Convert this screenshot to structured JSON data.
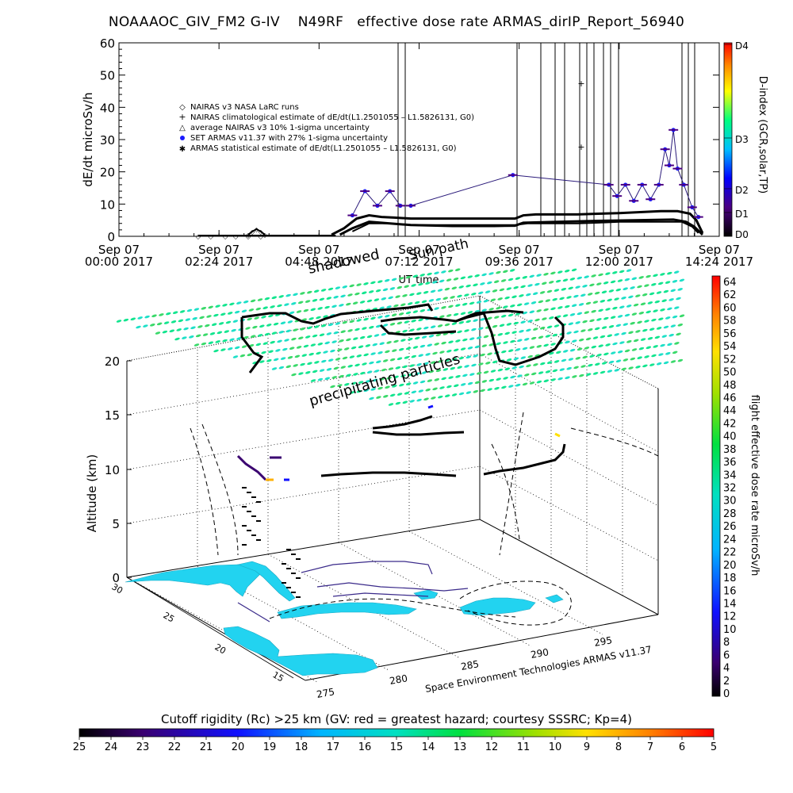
{
  "title": "NOAAAOC_GIV_FM2 G-IV    N49RF   effective dose rate ARMAS_dirIP_Report_56940",
  "chart_data": [
    {
      "type": "line",
      "ylabel": "dE/dt microSv/h",
      "xlabel": "UT time",
      "ylim": [
        0,
        60
      ],
      "yticks": [
        "0",
        "10",
        "20",
        "30",
        "40",
        "50",
        "60"
      ],
      "xticks": [
        {
          "day": "Sep 07",
          "time": "00:00 2017"
        },
        {
          "day": "Sep 07",
          "time": "02:24 2017"
        },
        {
          "day": "Sep 07",
          "time": "04:48 2017"
        },
        {
          "day": "Sep 07",
          "time": "07:12 2017"
        },
        {
          "day": "Sep 07",
          "time": "09:36 2017"
        },
        {
          "day": "Sep 07",
          "time": "12:00 2017"
        },
        {
          "day": "Sep 07",
          "time": "14:24 2017"
        }
      ],
      "x_hours_range": [
        0,
        14.4
      ],
      "legend": [
        "NAIRAS v3 NASA LaRC runs",
        "NAIRAS climatological estimate of dE/dt(L1.2501055 – L1.5826131, G0)",
        "average NAIRAS v3 10% 1-sigma uncertainty",
        "SET ARMAS v11.37 with 27% 1-sigma uncertainty",
        "ARMAS statistical estimate of dE/dt(L1.2501055 – L1.5826131, G0)"
      ],
      "legend_colors": [
        "#000000",
        "#000000",
        "#000000",
        "#1a1aff",
        "#000000"
      ],
      "colorbar": {
        "label": "D-index (GCR,solar,TP)",
        "ticks": [
          "D4",
          "D3",
          "D2",
          "D1",
          "D0"
        ]
      },
      "series": [
        {
          "key": "nairas_runs",
          "x_hours": [
            1.9,
            2.2,
            2.55,
            2.8,
            3.1,
            3.4
          ],
          "values": [
            0,
            0,
            0,
            0,
            0,
            0
          ]
        },
        {
          "key": "nairas_bump",
          "x_hours": [
            3.1,
            3.2,
            3.3,
            3.4,
            3.5
          ],
          "values": [
            0.5,
            1.5,
            2.2,
            1.5,
            0.5
          ]
        },
        {
          "key": "climatological",
          "x_hours": [
            5.1,
            5.4,
            5.7,
            6.0,
            6.3,
            6.6,
            7.0,
            7.5,
            8.0,
            8.5,
            9.0,
            9.5,
            9.7,
            10.0,
            10.5,
            11.0,
            11.5,
            12.0,
            12.5,
            13.0,
            13.4,
            13.7,
            13.85,
            14.0
          ],
          "values": [
            0.5,
            2.5,
            5.5,
            6.5,
            6.0,
            5.8,
            5.5,
            5.5,
            5.5,
            5.5,
            5.5,
            5.5,
            6.5,
            6.8,
            6.8,
            6.8,
            7.0,
            7.2,
            7.5,
            7.8,
            7.8,
            7.0,
            5.0,
            1.0
          ]
        },
        {
          "key": "average",
          "x_hours": [
            5.3,
            5.6,
            6.0,
            6.5,
            7.0,
            8.0,
            9.0,
            9.5,
            9.7,
            10.5,
            11.5,
            12.5,
            13.3,
            13.6,
            13.8,
            14.0
          ],
          "values": [
            0.5,
            2.5,
            4.5,
            4.0,
            3.5,
            3.2,
            3.2,
            3.3,
            4.2,
            4.5,
            4.8,
            5.0,
            5.2,
            4.5,
            3.0,
            0.5
          ]
        },
        {
          "key": "set_armas",
          "x_hours": [
            5.6,
            5.9,
            6.2,
            6.5,
            6.75,
            7.0,
            9.45,
            11.75,
            11.95,
            12.15,
            12.35,
            12.55,
            12.75,
            12.95,
            13.1,
            13.2,
            13.3,
            13.4,
            13.55,
            13.75,
            13.9
          ],
          "values": [
            6.5,
            14.0,
            9.5,
            14.0,
            9.5,
            9.5,
            19.0,
            16.0,
            12.5,
            16.0,
            11.0,
            16.0,
            11.5,
            16.0,
            27.0,
            22.0,
            33.0,
            21.0,
            16.0,
            9.0,
            6.0
          ]
        },
        {
          "key": "armas_statistical",
          "x_hours": [
            5.6,
            6.0,
            6.5,
            7.0,
            8.0,
            9.0,
            9.5,
            9.8,
            10.5,
            11.0,
            11.5,
            12.0,
            12.5,
            13.0,
            13.5,
            13.75,
            13.9
          ],
          "values": [
            1.5,
            4.0,
            4.0,
            3.5,
            3.5,
            3.5,
            3.5,
            4.0,
            4.0,
            4.0,
            4.2,
            4.5,
            4.5,
            4.5,
            4.5,
            3.0,
            1.0
          ]
        }
      ]
    },
    {
      "type": "scatter",
      "subtype": "3d-flight-track",
      "zlabel": "Altitude (km)",
      "zticks": [
        "0",
        "5",
        "10",
        "15",
        "20"
      ],
      "lat_ticks": [
        "30",
        "25",
        "20",
        "15"
      ],
      "lon_ticks": [
        "275",
        "280",
        "285",
        "290",
        "295"
      ],
      "annotations": [
        "shadowed",
        "Sun path",
        "precipitating particles"
      ],
      "footer_credit": "Space Environment Technologies ARMAS v11.37",
      "colorbar": {
        "label": "flight effective dose rate microSv/h",
        "ticks": [
          "64",
          "62",
          "60",
          "58",
          "56",
          "54",
          "52",
          "50",
          "48",
          "46",
          "44",
          "42",
          "40",
          "38",
          "36",
          "34",
          "32",
          "30",
          "28",
          "26",
          "24",
          "22",
          "20",
          "18",
          "16",
          "14",
          "12",
          "10",
          "8",
          "6",
          "4",
          "2",
          "0"
        ]
      }
    },
    {
      "type": "heatmap",
      "subtype": "colorbar",
      "title": "Cutoff rigidity (Rc) >25 km (GV: red = greatest hazard; courtesy SSSRC; Kp=4)",
      "ticks": [
        "25",
        "24",
        "23",
        "22",
        "21",
        "20",
        "19",
        "18",
        "17",
        "16",
        "15",
        "14",
        "13",
        "12",
        "11",
        "10",
        "9",
        "8",
        "7",
        "6",
        "5"
      ]
    }
  ]
}
